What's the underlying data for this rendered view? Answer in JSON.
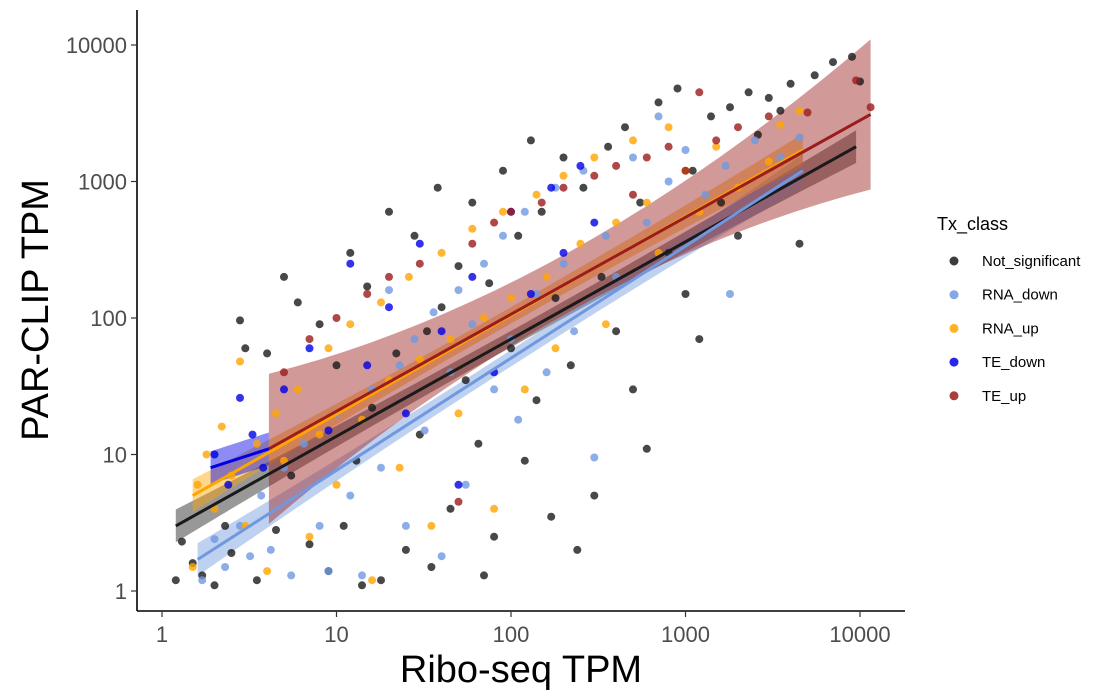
{
  "chart_data": {
    "type": "scatter",
    "title": "",
    "xlabel": "Ribo-seq TPM",
    "ylabel": "PAR-CLIP TPM",
    "x_scale": "log10",
    "y_scale": "log10",
    "xlim": [
      1,
      12000
    ],
    "ylim": [
      1,
      14000
    ],
    "x_ticks": [
      1,
      10,
      100,
      1000,
      10000
    ],
    "x_tick_labels": [
      "1",
      "10",
      "100",
      "1000",
      "10000"
    ],
    "y_ticks": [
      1,
      10,
      100,
      1000,
      10000
    ],
    "y_tick_labels": [
      "1",
      "10",
      "100",
      "1000",
      "10000"
    ],
    "grid": false,
    "legend": {
      "title": "Tx_class",
      "placement": "right",
      "entries": [
        "Not_significant",
        "RNA_down",
        "RNA_up",
        "TE_down",
        "TE_up"
      ]
    },
    "series": [
      {
        "name": "Not_significant",
        "color": "#1a1a1a",
        "fit": {
          "x_range": [
            1.2,
            9500
          ],
          "y_at_x_min": 3.0,
          "y_at_x_max": 1800
        },
        "points": [
          [
            1.2,
            1.2
          ],
          [
            1.3,
            2.3
          ],
          [
            1.5,
            1.6
          ],
          [
            1.7,
            1.3
          ],
          [
            2,
            1.1
          ],
          [
            2.3,
            3
          ],
          [
            2.5,
            1.9
          ],
          [
            2.8,
            96
          ],
          [
            3,
            60
          ],
          [
            3.5,
            1.2
          ],
          [
            4,
            55
          ],
          [
            4.5,
            2.8
          ],
          [
            5,
            200
          ],
          [
            5.5,
            7
          ],
          [
            6,
            130
          ],
          [
            7,
            2.2
          ],
          [
            8,
            90
          ],
          [
            9,
            1.4
          ],
          [
            10,
            45
          ],
          [
            11,
            3
          ],
          [
            12,
            300
          ],
          [
            13,
            9
          ],
          [
            14,
            1.1
          ],
          [
            15,
            170
          ],
          [
            16,
            22
          ],
          [
            18,
            1.2
          ],
          [
            20,
            600
          ],
          [
            22,
            55
          ],
          [
            25,
            2
          ],
          [
            28,
            400
          ],
          [
            30,
            14
          ],
          [
            33,
            80
          ],
          [
            35,
            1.5
          ],
          [
            38,
            900
          ],
          [
            40,
            120
          ],
          [
            45,
            4
          ],
          [
            50,
            240
          ],
          [
            55,
            35
          ],
          [
            60,
            700
          ],
          [
            65,
            12
          ],
          [
            70,
            1.3
          ],
          [
            75,
            180
          ],
          [
            80,
            2.5
          ],
          [
            90,
            1200
          ],
          [
            100,
            60
          ],
          [
            110,
            400
          ],
          [
            120,
            9
          ],
          [
            130,
            2000
          ],
          [
            140,
            25
          ],
          [
            150,
            600
          ],
          [
            170,
            3.5
          ],
          [
            180,
            140
          ],
          [
            200,
            1500
          ],
          [
            220,
            45
          ],
          [
            240,
            2
          ],
          [
            260,
            900
          ],
          [
            300,
            5
          ],
          [
            330,
            200
          ],
          [
            360,
            1800
          ],
          [
            400,
            80
          ],
          [
            450,
            2500
          ],
          [
            500,
            30
          ],
          [
            550,
            700
          ],
          [
            600,
            11
          ],
          [
            700,
            3800
          ],
          [
            800,
            300
          ],
          [
            900,
            4800
          ],
          [
            1000,
            150
          ],
          [
            1100,
            1200
          ],
          [
            1200,
            70
          ],
          [
            1400,
            3000
          ],
          [
            1600,
            700
          ],
          [
            1800,
            3500
          ],
          [
            2000,
            400
          ],
          [
            2300,
            4500
          ],
          [
            2600,
            2200
          ],
          [
            3000,
            4100
          ],
          [
            3500,
            3300
          ],
          [
            4000,
            5200
          ],
          [
            4500,
            350
          ],
          [
            5500,
            6000
          ],
          [
            7000,
            7500
          ],
          [
            9000,
            8200
          ],
          [
            10000,
            5400
          ]
        ]
      },
      {
        "name": "RNA_down",
        "color": "#6f98e0",
        "fit": {
          "x_range": [
            1.6,
            4700
          ],
          "y_at_x_min": 1.7,
          "y_at_x_max": 1200
        },
        "points": [
          [
            1.7,
            1.2
          ],
          [
            2,
            2.4
          ],
          [
            2.3,
            1.5
          ],
          [
            2.8,
            3
          ],
          [
            3.2,
            1.8
          ],
          [
            3.7,
            5
          ],
          [
            4.2,
            2
          ],
          [
            5,
            8
          ],
          [
            5.5,
            1.3
          ],
          [
            6.5,
            12
          ],
          [
            8,
            3
          ],
          [
            9,
            1.4
          ],
          [
            10,
            20
          ],
          [
            12,
            5
          ],
          [
            14,
            1.3
          ],
          [
            16,
            30
          ],
          [
            18,
            8
          ],
          [
            20,
            160
          ],
          [
            23,
            45
          ],
          [
            25,
            3
          ],
          [
            28,
            70
          ],
          [
            32,
            15
          ],
          [
            36,
            110
          ],
          [
            40,
            1.8
          ],
          [
            45,
            40
          ],
          [
            50,
            160
          ],
          [
            55,
            6
          ],
          [
            60,
            90
          ],
          [
            70,
            250
          ],
          [
            80,
            30
          ],
          [
            90,
            400
          ],
          [
            100,
            70
          ],
          [
            110,
            18
          ],
          [
            120,
            600
          ],
          [
            140,
            150
          ],
          [
            160,
            40
          ],
          [
            180,
            900
          ],
          [
            200,
            250
          ],
          [
            230,
            80
          ],
          [
            260,
            1200
          ],
          [
            300,
            9.5
          ],
          [
            350,
            400
          ],
          [
            400,
            200
          ],
          [
            500,
            1500
          ],
          [
            600,
            500
          ],
          [
            700,
            3000
          ],
          [
            800,
            1000
          ],
          [
            1000,
            1700
          ],
          [
            1300,
            800
          ],
          [
            1700,
            1300
          ],
          [
            1800,
            150
          ],
          [
            2500,
            2000
          ],
          [
            3500,
            1500
          ],
          [
            4500,
            2100
          ]
        ]
      },
      {
        "name": "RNA_up",
        "color": "#ffa500",
        "fit": {
          "x_range": [
            1.5,
            4700
          ],
          "y_at_x_min": 5.0,
          "y_at_x_max": 1700
        },
        "points": [
          [
            1.5,
            1.5
          ],
          [
            1.6,
            6
          ],
          [
            1.8,
            10
          ],
          [
            2,
            4
          ],
          [
            2.2,
            16
          ],
          [
            2.5,
            7
          ],
          [
            2.8,
            48
          ],
          [
            3,
            3
          ],
          [
            3.5,
            12
          ],
          [
            4,
            1.4
          ],
          [
            4.5,
            20
          ],
          [
            5,
            9
          ],
          [
            6,
            30
          ],
          [
            7,
            2.5
          ],
          [
            8,
            14
          ],
          [
            9,
            60
          ],
          [
            10,
            6
          ],
          [
            12,
            90
          ],
          [
            14,
            18
          ],
          [
            16,
            1.2
          ],
          [
            18,
            130
          ],
          [
            20,
            35
          ],
          [
            23,
            8
          ],
          [
            26,
            200
          ],
          [
            30,
            50
          ],
          [
            35,
            3
          ],
          [
            40,
            300
          ],
          [
            45,
            70
          ],
          [
            50,
            20
          ],
          [
            60,
            450
          ],
          [
            70,
            100
          ],
          [
            80,
            4
          ],
          [
            90,
            600
          ],
          [
            100,
            140
          ],
          [
            120,
            30
          ],
          [
            140,
            800
          ],
          [
            160,
            200
          ],
          [
            180,
            60
          ],
          [
            200,
            1100
          ],
          [
            250,
            350
          ],
          [
            300,
            1500
          ],
          [
            350,
            90
          ],
          [
            400,
            500
          ],
          [
            500,
            2000
          ],
          [
            600,
            700
          ],
          [
            700,
            300
          ],
          [
            800,
            2500
          ],
          [
            1000,
            1200
          ],
          [
            1200,
            600
          ],
          [
            1500,
            1800
          ],
          [
            2000,
            900
          ],
          [
            3000,
            1400
          ],
          [
            3500,
            2600
          ],
          [
            4500,
            3300
          ]
        ]
      },
      {
        "name": "TE_down",
        "color": "#0000e6",
        "fit": {
          "x_range": [
            1.9,
            4.1
          ],
          "y_at_x_min": 8.0,
          "y_at_x_max": 11.0
        },
        "points": [
          [
            2,
            10
          ],
          [
            2.4,
            6
          ],
          [
            2.8,
            26
          ],
          [
            3.3,
            14
          ],
          [
            3.8,
            8
          ],
          [
            5,
            30
          ],
          [
            7,
            60
          ],
          [
            9,
            15
          ],
          [
            12,
            250
          ],
          [
            15,
            45
          ],
          [
            20,
            120
          ],
          [
            25,
            20
          ],
          [
            30,
            350
          ],
          [
            40,
            80
          ],
          [
            50,
            6
          ],
          [
            60,
            200
          ],
          [
            80,
            40
          ],
          [
            100,
            600
          ],
          [
            130,
            150
          ],
          [
            170,
            900
          ],
          [
            200,
            300
          ],
          [
            250,
            1300
          ],
          [
            300,
            500
          ]
        ]
      },
      {
        "name": "TE_up",
        "color": "#9b1c1c",
        "fit": {
          "x_range": [
            4.1,
            11500
          ],
          "y_at_x_min": 11.0,
          "y_at_x_max": 3100
        },
        "points": [
          [
            5,
            40
          ],
          [
            7,
            70
          ],
          [
            10,
            100
          ],
          [
            15,
            150
          ],
          [
            20,
            200
          ],
          [
            30,
            250
          ],
          [
            50,
            4.5
          ],
          [
            60,
            350
          ],
          [
            80,
            500
          ],
          [
            100,
            600
          ],
          [
            150,
            700
          ],
          [
            200,
            900
          ],
          [
            300,
            1100
          ],
          [
            400,
            1300
          ],
          [
            500,
            800
          ],
          [
            600,
            1500
          ],
          [
            800,
            1800
          ],
          [
            1000,
            1200
          ],
          [
            1200,
            4500
          ],
          [
            1500,
            2000
          ],
          [
            2000,
            2500
          ],
          [
            3000,
            3000
          ],
          [
            5000,
            3200
          ],
          [
            9500,
            5500
          ],
          [
            11500,
            3500
          ]
        ]
      }
    ]
  }
}
